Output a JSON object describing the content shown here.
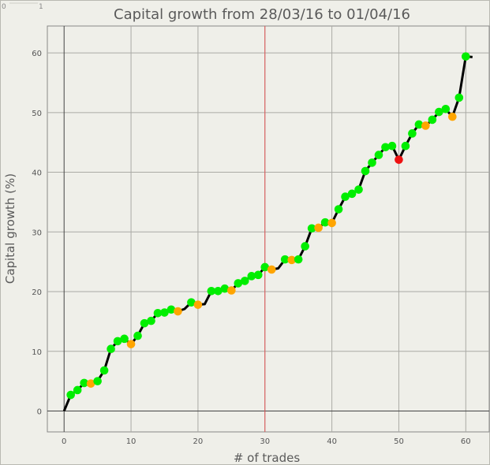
{
  "chart_data": {
    "type": "line",
    "title": "Capital growth from 28/03/16 to 01/04/16",
    "xlabel": "# of trades",
    "ylabel": "Capital growth (%)",
    "xlim": [
      -2.5,
      63.5
    ],
    "ylim": [
      -3.5,
      64.5
    ],
    "xticks": [
      0,
      10,
      20,
      30,
      40,
      50,
      60
    ],
    "yticks": [
      0,
      10,
      20,
      30,
      40,
      50,
      60
    ],
    "grid": true,
    "vline_x": 30,
    "line_color": "#000000",
    "marker_colors": {
      "g": "#00ee00",
      "o": "#ffa500",
      "r": "#ee1111"
    },
    "series": [
      {
        "x": [
          0,
          1,
          2,
          3,
          4,
          5,
          6,
          7,
          8,
          9,
          10,
          11,
          12,
          13,
          14,
          15,
          16,
          17,
          18,
          19,
          20,
          21,
          22,
          23,
          24,
          25,
          26,
          27,
          28,
          29,
          30,
          31,
          32,
          33,
          34,
          35,
          36,
          37,
          38,
          39,
          40,
          41,
          42,
          43,
          44,
          45,
          46,
          47,
          48,
          49,
          50,
          51,
          52,
          53,
          54,
          55,
          56,
          57,
          58,
          59,
          60,
          61
        ],
        "y": [
          0,
          2.7,
          3.5,
          4.7,
          4.6,
          5.0,
          6.8,
          10.4,
          11.7,
          12.1,
          11.2,
          12.6,
          14.7,
          15.1,
          16.4,
          16.5,
          17.0,
          16.7,
          17.1,
          18.2,
          17.8,
          17.9,
          20.1,
          20.1,
          20.5,
          20.2,
          21.4,
          21.8,
          22.6,
          22.8,
          24.1,
          23.7,
          23.9,
          25.4,
          25.3,
          25.4,
          27.6,
          30.6,
          30.7,
          31.6,
          31.5,
          33.8,
          35.9,
          36.4,
          37.1,
          40.2,
          41.6,
          42.9,
          44.2,
          44.4,
          42.1,
          44.4,
          46.5,
          48.0,
          47.8,
          48.8,
          50.1,
          50.6,
          49.3,
          52.5,
          59.4,
          59.3
        ],
        "markers": [
          "n",
          "g",
          "g",
          "g",
          "o",
          "g",
          "g",
          "g",
          "g",
          "g",
          "o",
          "g",
          "g",
          "g",
          "g",
          "g",
          "g",
          "o",
          "n",
          "g",
          "o",
          "n",
          "g",
          "g",
          "g",
          "o",
          "g",
          "g",
          "g",
          "g",
          "g",
          "o",
          "n",
          "g",
          "o",
          "g",
          "g",
          "g",
          "o",
          "g",
          "o",
          "g",
          "g",
          "g",
          "g",
          "g",
          "g",
          "g",
          "g",
          "g",
          "r",
          "g",
          "g",
          "g",
          "o",
          "g",
          "g",
          "g",
          "o",
          "g",
          "g",
          "n"
        ]
      }
    ]
  },
  "corner_ticks": [
    "0",
    "1"
  ]
}
